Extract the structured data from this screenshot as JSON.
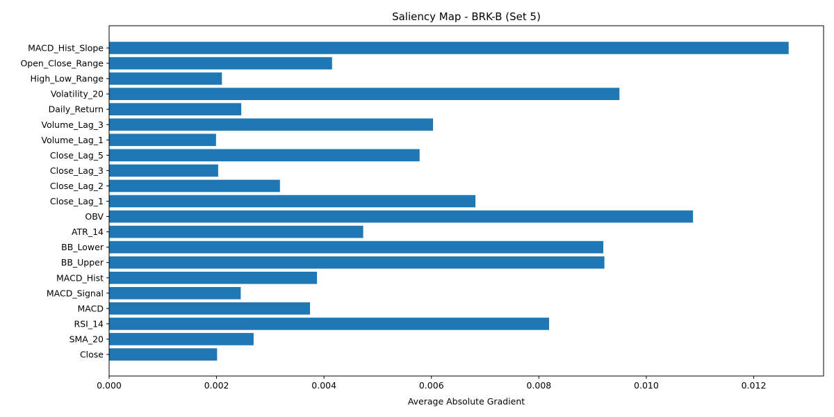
{
  "chart_data": {
    "type": "bar",
    "orientation": "horizontal",
    "title": "Saliency Map - BRK-B (Set 5)",
    "xlabel": "Average Absolute Gradient",
    "ylabel": "",
    "xlim": [
      0,
      0.0133
    ],
    "xticks": [
      0.0,
      0.002,
      0.004,
      0.006,
      0.008,
      0.01,
      0.012
    ],
    "xtick_labels": [
      "0.000",
      "0.002",
      "0.004",
      "0.006",
      "0.008",
      "0.010",
      "0.012"
    ],
    "grid": false,
    "legend": "none",
    "bar_color": "#1f77b4",
    "categories": [
      "Close",
      "SMA_20",
      "RSI_14",
      "MACD",
      "MACD_Signal",
      "MACD_Hist",
      "BB_Upper",
      "BB_Lower",
      "ATR_14",
      "OBV",
      "Close_Lag_1",
      "Close_Lag_2",
      "Close_Lag_3",
      "Close_Lag_5",
      "Volume_Lag_1",
      "Volume_Lag_3",
      "Daily_Return",
      "Volatility_20",
      "High_Low_Range",
      "Open_Close_Range",
      "MACD_Hist_Slope"
    ],
    "values": [
      0.00201,
      0.00269,
      0.00819,
      0.00374,
      0.00245,
      0.00387,
      0.00922,
      0.0092,
      0.00473,
      0.01087,
      0.00682,
      0.00318,
      0.00203,
      0.00578,
      0.00199,
      0.00603,
      0.00246,
      0.0095,
      0.0021,
      0.00415,
      0.01265
    ]
  }
}
